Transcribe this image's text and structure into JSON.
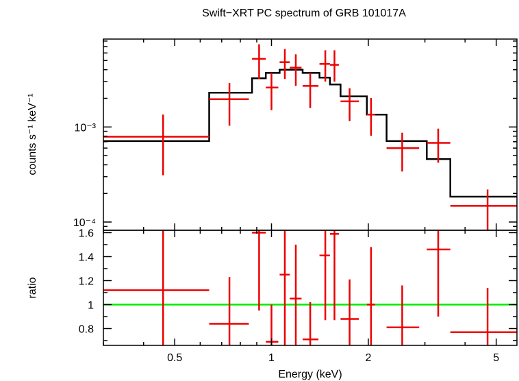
{
  "chart_data": {
    "type": "line",
    "title": "Swift−XRT PC spectrum of GRB 101017A",
    "xlabel": "Energy (keV)",
    "x_scale": "log",
    "xlim": [
      0.3,
      5.8
    ],
    "x_ticks": [
      {
        "value": 0.5,
        "label": "0.5"
      },
      {
        "value": 1,
        "label": "1"
      },
      {
        "value": 2,
        "label": "2"
      },
      {
        "value": 5,
        "label": "5"
      }
    ],
    "colors": {
      "data": "#ee0000",
      "model": "#000000",
      "unity": "#00ee00",
      "axes": "#000000"
    },
    "top_panel": {
      "ylabel": "counts s⁻¹ keV⁻¹",
      "y_scale": "log",
      "ylim": [
        8.2e-05,
        0.0084
      ],
      "y_ticks": [
        {
          "value": 0.001,
          "label": "10⁻³"
        },
        {
          "value": 0.0001,
          "label": "10⁻⁴"
        }
      ],
      "data": [
        {
          "x": 0.46,
          "xlo": 0.3,
          "xhi": 0.64,
          "y": 0.00079,
          "ylo": 0.00031,
          "yhi": 0.00135
        },
        {
          "x": 0.74,
          "xlo": 0.64,
          "xhi": 0.85,
          "y": 0.00196,
          "ylo": 0.00103,
          "yhi": 0.0029
        },
        {
          "x": 0.915,
          "xlo": 0.87,
          "xhi": 0.96,
          "y": 0.0052,
          "ylo": 0.0032,
          "yhi": 0.0074
        },
        {
          "x": 1.0,
          "xlo": 0.96,
          "xhi": 1.05,
          "y": 0.0026,
          "ylo": 0.0015,
          "yhi": 0.0037
        },
        {
          "x": 1.1,
          "xlo": 1.06,
          "xhi": 1.14,
          "y": 0.0048,
          "ylo": 0.0032,
          "yhi": 0.0066
        },
        {
          "x": 1.19,
          "xlo": 1.14,
          "xhi": 1.24,
          "y": 0.0042,
          "ylo": 0.0027,
          "yhi": 0.0058
        },
        {
          "x": 1.32,
          "xlo": 1.25,
          "xhi": 1.4,
          "y": 0.0027,
          "ylo": 0.00158,
          "yhi": 0.0037
        },
        {
          "x": 1.47,
          "xlo": 1.41,
          "xhi": 1.52,
          "y": 0.0046,
          "ylo": 0.003,
          "yhi": 0.0064
        },
        {
          "x": 1.57,
          "xlo": 1.52,
          "xhi": 1.62,
          "y": 0.0045,
          "ylo": 0.003,
          "yhi": 0.0064
        },
        {
          "x": 1.75,
          "xlo": 1.64,
          "xhi": 1.87,
          "y": 0.00186,
          "ylo": 0.00115,
          "yhi": 0.00255
        },
        {
          "x": 2.04,
          "xlo": 1.98,
          "xhi": 2.1,
          "y": 0.00135,
          "ylo": 0.00081,
          "yhi": 0.00202
        },
        {
          "x": 2.55,
          "xlo": 2.28,
          "xhi": 2.88,
          "y": 0.0006,
          "ylo": 0.00034,
          "yhi": 0.00087
        },
        {
          "x": 3.3,
          "xlo": 3.04,
          "xhi": 3.6,
          "y": 0.00068,
          "ylo": 0.00042,
          "yhi": 0.00096
        },
        {
          "x": 4.7,
          "xlo": 3.6,
          "xhi": 5.8,
          "y": 0.000148,
          "ylo": 8.2e-05,
          "yhi": 0.00022
        }
      ],
      "model_steps": [
        {
          "xlo": 0.3,
          "xhi": 0.64,
          "y": 0.00071
        },
        {
          "xlo": 0.64,
          "xhi": 0.87,
          "y": 0.00229
        },
        {
          "xlo": 0.87,
          "xhi": 0.96,
          "y": 0.00325
        },
        {
          "xlo": 0.96,
          "xhi": 1.06,
          "y": 0.0037
        },
        {
          "xlo": 1.06,
          "xhi": 1.14,
          "y": 0.004
        },
        {
          "xlo": 1.14,
          "xhi": 1.25,
          "y": 0.004
        },
        {
          "xlo": 1.25,
          "xhi": 1.41,
          "y": 0.0037
        },
        {
          "xlo": 1.41,
          "xhi": 1.52,
          "y": 0.0033
        },
        {
          "xlo": 1.52,
          "xhi": 1.64,
          "y": 0.0028
        },
        {
          "xlo": 1.64,
          "xhi": 1.98,
          "y": 0.0021
        },
        {
          "xlo": 1.98,
          "xhi": 2.28,
          "y": 0.00135
        },
        {
          "xlo": 2.28,
          "xhi": 3.04,
          "y": 0.00071
        },
        {
          "xlo": 3.04,
          "xhi": 3.6,
          "y": 0.00046
        },
        {
          "xlo": 3.6,
          "xhi": 5.8,
          "y": 0.000185
        }
      ]
    },
    "bottom_panel": {
      "ylabel": "ratio",
      "y_scale": "linear",
      "ylim": [
        0.66,
        1.62
      ],
      "y_ticks": [
        {
          "value": 0.8,
          "label": "0.8"
        },
        {
          "value": 1.0,
          "label": "1"
        },
        {
          "value": 1.2,
          "label": "1.2"
        },
        {
          "value": 1.4,
          "label": "1.4"
        },
        {
          "value": 1.6,
          "label": "1.6"
        }
      ],
      "unity_line": 1.0,
      "data": [
        {
          "x": 0.46,
          "xlo": 0.3,
          "xhi": 0.64,
          "y": 1.12,
          "ylo": 0.66,
          "yhi": 1.62
        },
        {
          "x": 0.74,
          "xlo": 0.64,
          "xhi": 0.85,
          "y": 0.84,
          "ylo": 0.66,
          "yhi": 1.23
        },
        {
          "x": 0.915,
          "xlo": 0.87,
          "xhi": 0.96,
          "y": 1.6,
          "ylo": 0.95,
          "yhi": 1.62
        },
        {
          "x": 1.0,
          "xlo": 0.96,
          "xhi": 1.05,
          "y": 0.69,
          "ylo": 0.66,
          "yhi": 1.0
        },
        {
          "x": 1.1,
          "xlo": 1.06,
          "xhi": 1.14,
          "y": 1.25,
          "ylo": 0.66,
          "yhi": 1.62
        },
        {
          "x": 1.19,
          "xlo": 1.14,
          "xhi": 1.24,
          "y": 1.05,
          "ylo": 0.66,
          "yhi": 1.5
        },
        {
          "x": 1.32,
          "xlo": 1.25,
          "xhi": 1.4,
          "y": 0.71,
          "ylo": 0.66,
          "yhi": 1.02
        },
        {
          "x": 1.47,
          "xlo": 1.41,
          "xhi": 1.52,
          "y": 1.41,
          "ylo": 0.87,
          "yhi": 1.62
        },
        {
          "x": 1.57,
          "xlo": 1.52,
          "xhi": 1.62,
          "y": 1.59,
          "ylo": 0.87,
          "yhi": 1.62
        },
        {
          "x": 1.75,
          "xlo": 1.64,
          "xhi": 1.87,
          "y": 0.88,
          "ylo": 0.66,
          "yhi": 1.21
        },
        {
          "x": 2.04,
          "xlo": 1.98,
          "xhi": 2.1,
          "y": 1.0,
          "ylo": 0.66,
          "yhi": 1.48
        },
        {
          "x": 2.55,
          "xlo": 2.28,
          "xhi": 2.88,
          "y": 0.81,
          "ylo": 0.66,
          "yhi": 1.16
        },
        {
          "x": 3.3,
          "xlo": 3.04,
          "xhi": 3.6,
          "y": 1.46,
          "ylo": 0.9,
          "yhi": 1.62
        },
        {
          "x": 4.7,
          "xlo": 3.6,
          "xhi": 5.8,
          "y": 0.77,
          "ylo": 0.66,
          "yhi": 1.14
        }
      ]
    }
  }
}
